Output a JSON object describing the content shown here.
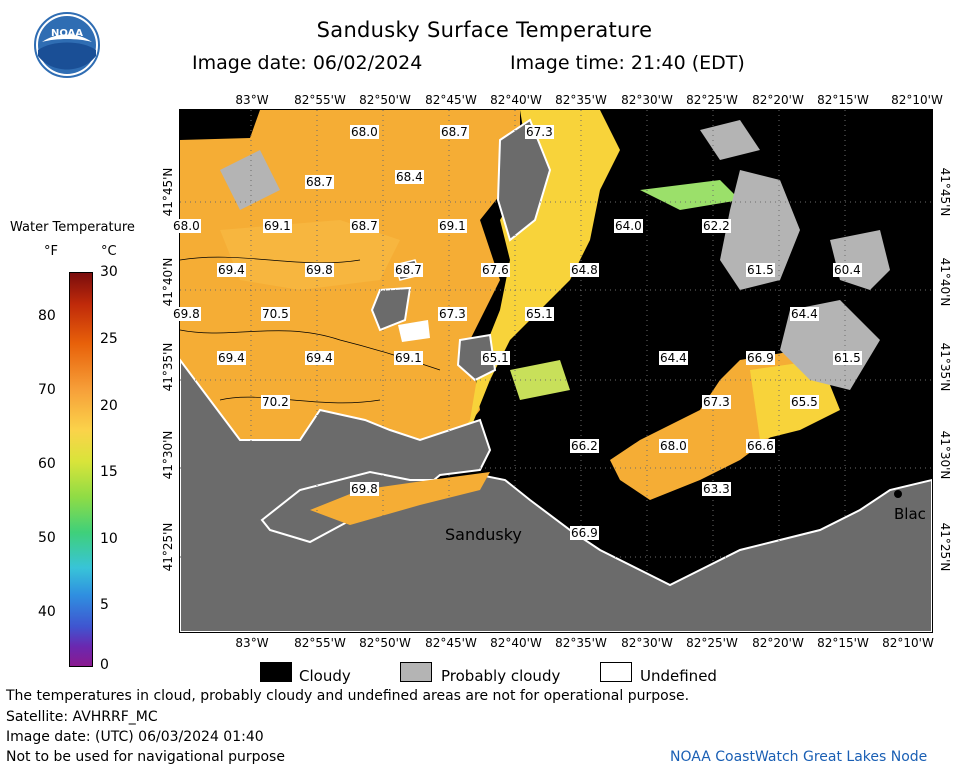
{
  "header": {
    "title": "Sandusky Surface Temperature",
    "image_date": "Image date: 06/02/2024",
    "image_time": "Image time: 21:40 (EDT)"
  },
  "legend": {
    "title": "Water Temperature",
    "unit_f": "°F",
    "unit_c": "°C",
    "f_ticks": [
      "80",
      "70",
      "60",
      "50",
      "40"
    ],
    "c_ticks": [
      "30",
      "25",
      "20",
      "15",
      "10",
      "5",
      "0"
    ],
    "keys": [
      {
        "label": "Cloudy",
        "color": "#000000"
      },
      {
        "label": "Probably cloudy",
        "color": "#b4b4b4"
      },
      {
        "label": "Undefined",
        "color": "#ffffff"
      }
    ]
  },
  "map": {
    "lon_labels": [
      "83°W",
      "82°55'W",
      "82°50'W",
      "82°45'W",
      "82°40'W",
      "82°35'W",
      "82°30'W",
      "82°25'W",
      "82°20'W",
      "82°15'W",
      "82°10'W"
    ],
    "lat_labels": [
      "41°45'N",
      "41°40'N",
      "41°35'N",
      "41°30'N",
      "41°25'N"
    ],
    "place_labels": [
      "Sandusky",
      "Blac"
    ],
    "temps": [
      {
        "v": "68.0"
      },
      {
        "v": "68.7"
      },
      {
        "v": "67.3"
      },
      {
        "v": "68.7"
      },
      {
        "v": "68.4"
      },
      {
        "v": "68.0"
      },
      {
        "v": "69.1"
      },
      {
        "v": "68.7"
      },
      {
        "v": "69.1"
      },
      {
        "v": "64.0"
      },
      {
        "v": "62.2"
      },
      {
        "v": "69.4"
      },
      {
        "v": "69.8"
      },
      {
        "v": "68.7"
      },
      {
        "v": "67.6"
      },
      {
        "v": "64.8"
      },
      {
        "v": "61.5"
      },
      {
        "v": "60.4"
      },
      {
        "v": "69.8"
      },
      {
        "v": "70.5"
      },
      {
        "v": "67.3"
      },
      {
        "v": "65.1"
      },
      {
        "v": "64.4"
      },
      {
        "v": "69.4"
      },
      {
        "v": "69.4"
      },
      {
        "v": "69.1"
      },
      {
        "v": "65.1"
      },
      {
        "v": "64.4"
      },
      {
        "v": "66.9"
      },
      {
        "v": "61.5"
      },
      {
        "v": "70.2"
      },
      {
        "v": "67.3"
      },
      {
        "v": "65.5"
      },
      {
        "v": "66.2"
      },
      {
        "v": "68.0"
      },
      {
        "v": "66.6"
      },
      {
        "v": "69.8"
      },
      {
        "v": "63.3"
      },
      {
        "v": "66.9"
      }
    ]
  },
  "footer": {
    "disclaimer": "The temperatures in cloud, probably cloudy and undefined areas are not for operational purpose.",
    "satellite": "Satellite: AVHRRF_MC",
    "utc_date": "Image date: (UTC) 06/03/2024  01:40",
    "nav_note": "Not to be used for navigational purpose",
    "credit": "NOAA CoastWatch Great Lakes Node"
  },
  "logo": {
    "text": "NOAA"
  },
  "colors": {
    "lake_orange": "#f5ad35",
    "cloud": "#000000",
    "land": "#6b6b6b",
    "probably_cloudy": "#b4b4b4",
    "credit_blue": "#1a5fb4"
  }
}
